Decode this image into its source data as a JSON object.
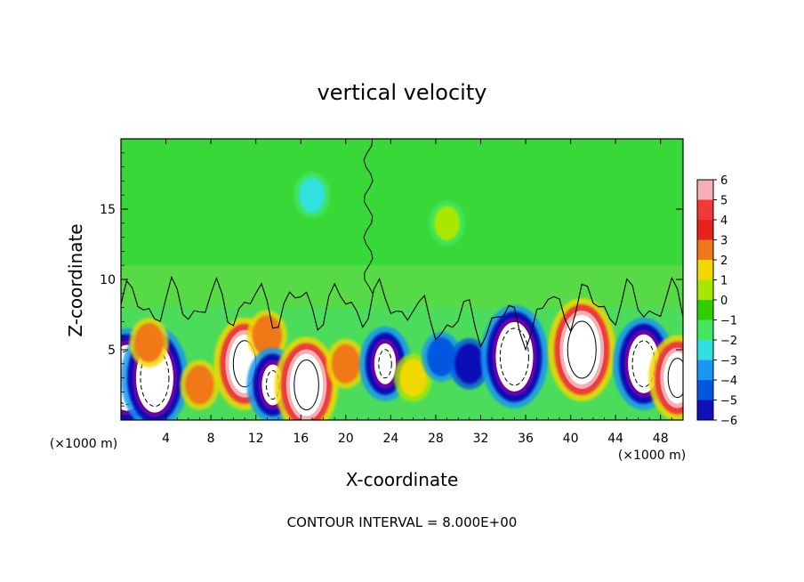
{
  "chart_data": {
    "type": "heatmap",
    "title": "vertical velocity",
    "xlabel": "X-coordinate",
    "ylabel": "Z-coordinate",
    "x_unit_left": "(×1000 m)",
    "x_unit_right": "(×1000 m)",
    "footer": "CONTOUR INTERVAL = 8.000E+00",
    "xlim": [
      0,
      50
    ],
    "ylim": [
      0,
      20
    ],
    "x_ticks": [
      4,
      8,
      12,
      16,
      20,
      24,
      28,
      32,
      36,
      40,
      44,
      48
    ],
    "x_tick_labels": [
      "4",
      "8",
      "12",
      "16",
      "20",
      "24",
      "28",
      "32",
      "36",
      "40",
      "44",
      "48"
    ],
    "y_ticks": [
      5,
      10,
      15
    ],
    "y_tick_labels": [
      "5",
      "10",
      "15"
    ],
    "colorbar": {
      "levels": [
        6,
        5,
        4,
        3,
        2,
        1,
        0,
        -1,
        -2,
        -3,
        -4,
        -5,
        -6
      ],
      "labels": [
        "6",
        "5",
        "4",
        "3",
        "2",
        "1",
        "0",
        "−1",
        "−2",
        "−3",
        "−4",
        "−5",
        "−6"
      ],
      "colors": [
        "#f4b0b4",
        "#f03a3a",
        "#e8201e",
        "#f07818",
        "#f0d800",
        "#a8e800",
        "#30d000",
        "#40e860",
        "#30e0e0",
        "#1898f0",
        "#0058e0",
        "#1010b8",
        "#6a00a8"
      ]
    },
    "cells": [
      {
        "x": 0.5,
        "z": 3.0,
        "w": -20.0
      },
      {
        "x": 3.0,
        "z": 3.0,
        "w": -30.0
      },
      {
        "x": 2.5,
        "z": 5.5,
        "w": 4.0
      },
      {
        "x": 7.0,
        "z": 2.5,
        "w": 4.0
      },
      {
        "x": 11.0,
        "z": 4.0,
        "w": 16.0
      },
      {
        "x": 13.0,
        "z": 6.0,
        "w": 5.0
      },
      {
        "x": 13.5,
        "z": 2.5,
        "w": -6.0
      },
      {
        "x": 16.5,
        "z": 2.5,
        "w": 18.0
      },
      {
        "x": 20.0,
        "z": 4.0,
        "w": 4.0
      },
      {
        "x": 23.5,
        "z": 4.0,
        "w": -6.0
      },
      {
        "x": 26.0,
        "z": 3.0,
        "w": 3.0
      },
      {
        "x": 28.5,
        "z": 4.5,
        "w": -4.0
      },
      {
        "x": 31.0,
        "z": 4.0,
        "w": -5.0
      },
      {
        "x": 35.0,
        "z": 4.5,
        "w": -30.0
      },
      {
        "x": 41.0,
        "z": 5.0,
        "w": 24.0
      },
      {
        "x": 46.5,
        "z": 4.0,
        "w": -16.0
      },
      {
        "x": 49.5,
        "z": 3.0,
        "w": 12.0
      },
      {
        "x": 29.0,
        "z": 14.0,
        "w": 1.0
      },
      {
        "x": 17.0,
        "z": 16.0,
        "w": -1.5
      }
    ]
  }
}
